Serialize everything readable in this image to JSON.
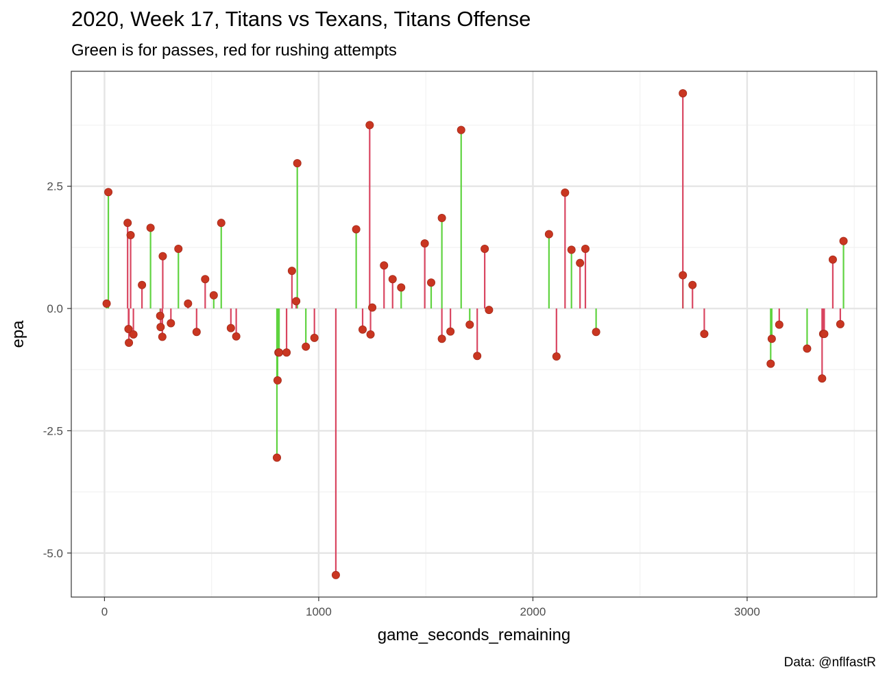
{
  "title": "2020, Week 17, Titans vs Texans, Titans Offense",
  "subtitle": "Green is for passes, red for rushing attempts",
  "caption": "Data: @nflfastR",
  "colors": {
    "pass": "#5fd33f",
    "run": "#d94560",
    "point": "#c93621",
    "point_stroke": "#a52a1a",
    "grid_major": "#e5e5e5",
    "grid_minor": "#f2f2f2",
    "border": "#333333"
  },
  "chart_data": {
    "type": "scatter",
    "title": "2020, Week 17, Titans vs Texans, Titans Offense",
    "subtitle": "Green is for passes, red for rushing attempts",
    "xlabel": "game_seconds_remaining",
    "ylabel": "epa",
    "xlim": [
      -155,
      3605
    ],
    "ylim": [
      -5.9,
      4.85
    ],
    "x_ticks": [
      0,
      1000,
      2000,
      3000
    ],
    "x_tick_labels": [
      "0",
      "1000",
      "2000",
      "3000"
    ],
    "y_ticks": [
      -5.0,
      -2.5,
      0.0,
      2.5
    ],
    "y_tick_labels": [
      "-5.0",
      "-2.5",
      "0.0",
      "2.5"
    ],
    "x_minor": [
      500,
      1500,
      2500,
      3500
    ],
    "y_minor": [
      -3.75,
      -1.25,
      1.25,
      3.75
    ],
    "grid": true,
    "legend": "none",
    "series": [
      {
        "name": "pass",
        "x": [
          10,
          18,
          215,
          260,
          345,
          510,
          545,
          805,
          808,
          812,
          815,
          900,
          940,
          1175,
          1250,
          1385,
          1525,
          1575,
          1665,
          1705,
          2075,
          2180,
          2295,
          2700,
          3110,
          3115,
          3280,
          3450
        ],
        "y": [
          0.1,
          2.38,
          1.65,
          -0.15,
          1.22,
          0.27,
          1.75,
          -3.05,
          -1.47,
          -0.9,
          -0.9,
          2.97,
          -0.78,
          1.62,
          0.02,
          0.43,
          0.53,
          1.85,
          3.65,
          -0.33,
          1.52,
          1.2,
          -0.48,
          0.68,
          -1.13,
          -0.62,
          -0.82,
          1.38
        ]
      },
      {
        "name": "run",
        "x": [
          108,
          112,
          114,
          122,
          135,
          175,
          262,
          270,
          272,
          310,
          390,
          430,
          470,
          590,
          615,
          850,
          875,
          895,
          980,
          1080,
          1205,
          1238,
          1242,
          1305,
          1345,
          1495,
          1575,
          1615,
          1740,
          1775,
          1795,
          2110,
          2150,
          2220,
          2245,
          2700,
          2745,
          2800,
          3150,
          3350,
          3355,
          3360,
          3400,
          3435
        ],
        "y": [
          1.75,
          -0.42,
          -0.7,
          1.5,
          -0.53,
          0.48,
          -0.38,
          -0.58,
          1.07,
          -0.3,
          0.1,
          -0.48,
          0.6,
          -0.4,
          -0.57,
          -0.9,
          0.77,
          0.15,
          -0.6,
          -5.45,
          -0.43,
          3.75,
          -0.53,
          0.88,
          0.6,
          1.33,
          -0.62,
          -0.47,
          -0.97,
          1.22,
          -0.03,
          -0.98,
          2.37,
          0.93,
          1.22,
          4.4,
          0.48,
          -0.52,
          -0.33,
          -1.43,
          -0.52,
          -0.52,
          1.0,
          -0.32
        ]
      }
    ]
  }
}
